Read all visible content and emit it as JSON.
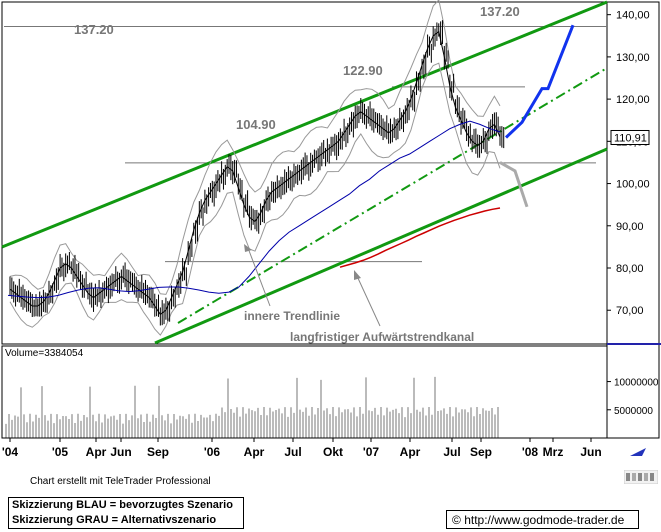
{
  "chart_data": {
    "type": "line",
    "title": "",
    "price_panel": {
      "ylim": [
        62,
        143
      ],
      "y_ticks": [
        "140,00",
        "130,00",
        "120,00",
        "110,00",
        "100,00",
        "90,00",
        "80,00",
        "70,00"
      ],
      "y_tick_values": [
        140,
        130,
        120,
        110,
        100,
        90,
        80,
        70
      ],
      "last_price_label": "110,91",
      "last_price": 110.91,
      "levels": [
        {
          "label": "137.20",
          "value": 137.2
        },
        {
          "label": "122.90",
          "value": 122.9
        },
        {
          "label": "104.90",
          "value": 104.9
        }
      ],
      "annotations": [
        "innere Trendlinie",
        "langfristiger Aufwärtstrendkanal"
      ],
      "series": [
        {
          "values": [
            75,
            74,
            73,
            72,
            71,
            71,
            72,
            74,
            77,
            80,
            81,
            80,
            78,
            76,
            74,
            73,
            74,
            75,
            76,
            77,
            78,
            77,
            76,
            75,
            74,
            73,
            71,
            69,
            70,
            73,
            76,
            79,
            84,
            89,
            93,
            96,
            98,
            100,
            102,
            104,
            103,
            99,
            95,
            92,
            91,
            93,
            96,
            98,
            99,
            100,
            101,
            102,
            103,
            104,
            105,
            106,
            107,
            108,
            109,
            110,
            112,
            114,
            116,
            117,
            116,
            115,
            114,
            113,
            112,
            113,
            115,
            117,
            120,
            124,
            128,
            132,
            135,
            136,
            130,
            123,
            118,
            115,
            112,
            110,
            109,
            110,
            113,
            114,
            111
          ]
        },
        {
          "values": [
            73.5,
            73.3,
            73.1,
            73.0,
            73.1,
            73.5,
            74.2,
            74.8,
            75.2,
            75.3,
            75.0,
            74.6,
            74.4,
            74.6,
            75.0,
            75.4,
            75.5,
            75.5,
            75.2,
            74.8,
            74.3,
            74.0,
            74.3,
            75.5,
            78.0,
            81.0,
            84.0,
            86.5,
            88.5,
            90.0,
            91.5,
            93.0,
            94.5,
            96.0,
            97.5,
            99.5,
            101.0,
            103.0,
            104.5,
            106.0,
            107.0,
            108.5,
            110.0,
            111.5,
            113.0,
            114.0,
            114.8,
            114.0,
            113.0,
            112.2
          ]
        },
        {
          "values": [
            80.2,
            80.7,
            81.2,
            81.8,
            82.5,
            83.3,
            84.2,
            85.0,
            85.8,
            86.6,
            87.5,
            88.3,
            89.1,
            89.9,
            90.6,
            91.3,
            91.9,
            92.5,
            93.0,
            93.5,
            93.9,
            94.2
          ]
        }
      ],
      "scenarios": [
        {
          "values": [
            110.9,
            114.5,
            122.5,
            122.5,
            137.5
          ]
        },
        {
          "values": [
            105,
            103,
            94.5
          ]
        }
      ]
    },
    "volume_panel": {
      "label": "Volume=3384054",
      "y_ticks": [
        "10000000",
        "5000000"
      ],
      "y_tick_values": [
        10000000,
        5000000
      ],
      "ylim": [
        0,
        14000000
      ]
    },
    "x_ticks": [
      "'04",
      "'05",
      "Apr",
      "Jun",
      "Sep",
      "'06",
      "Apr",
      "Jul",
      "Okt",
      "'07",
      "Apr",
      "Jul",
      "Sep",
      "'08",
      "Mrz",
      "Jun"
    ],
    "grid": false
  },
  "footer": {
    "note": "Chart erstellt mit TeleTrader Professional",
    "legend_line1": "Skizzierung BLAU = bevorzugtes Szenario",
    "legend_line2": "Skizzierung GRAU = Alternativszenario",
    "copyright": "©",
    "url": "http://www.godmode-trader.de"
  },
  "colors": {
    "price": "#000000",
    "moving_average_blue": "#0000aa",
    "moving_average_red": "#cc0000",
    "channel": "#119911",
    "scenario_blue": "#1133ee",
    "scenario_gray": "#aaaaaa",
    "bollinger": "#999999"
  }
}
